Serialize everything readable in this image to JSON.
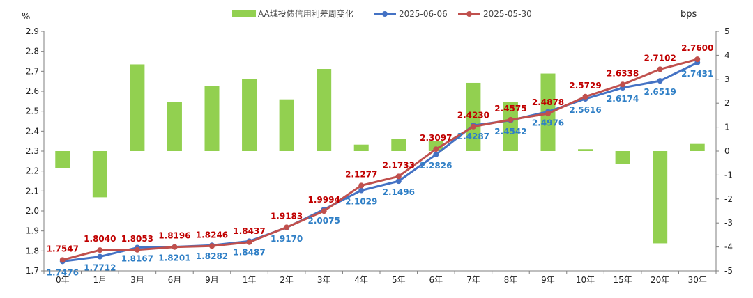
{
  "chart_data": {
    "type": "bar+line",
    "categories": [
      "0年",
      "1月",
      "3月",
      "6月",
      "9月",
      "1年",
      "2年",
      "3年",
      "4年",
      "5年",
      "6年",
      "7年",
      "8年",
      "9年",
      "10年",
      "15年",
      "20年",
      "30年"
    ],
    "left_axis": {
      "unit": "%",
      "ylim": [
        1.7,
        2.9
      ],
      "step": 0.1
    },
    "right_axis": {
      "unit": "bps",
      "ylim": [
        -5,
        5
      ],
      "step": 1
    },
    "bar_series": {
      "name": "AA城投债信用利差周变化",
      "axis": "right",
      "color": "#92D050",
      "values": [
        -0.71,
        -1.93,
        3.62,
        2.05,
        2.71,
        3.0,
        2.16,
        3.43,
        0.27,
        0.5,
        0.43,
        2.85,
        2.04,
        3.24,
        0.08,
        -0.54,
        -3.85,
        0.3
      ]
    },
    "line_series": [
      {
        "name": "2025-06-06",
        "axis": "left",
        "color": "#4472C4",
        "label_color": "#2F7FC6",
        "values": [
          1.7476,
          1.7712,
          1.8167,
          1.8201,
          1.8282,
          1.8487,
          1.917,
          2.0075,
          2.1029,
          2.1496,
          2.2826,
          2.4287,
          2.4542,
          2.4976,
          2.5616,
          2.6174,
          2.6519,
          2.7431
        ],
        "labels": [
          "1.7476",
          "1.7712",
          "1.8167",
          "1.8201",
          "1.8282",
          "1.8487",
          "1.9170",
          "2.0075",
          "2.1029",
          "2.1496",
          "2.2826",
          "2.4287",
          "2.4542",
          "2.4976",
          "2.5616",
          "2.6174",
          "2.6519",
          "2.7431"
        ]
      },
      {
        "name": "2025-05-30",
        "axis": "left",
        "color": "#C0504D",
        "label_color": "#C00000",
        "values": [
          1.7547,
          1.804,
          1.8053,
          1.8196,
          1.8246,
          1.8437,
          1.9183,
          1.9994,
          2.1277,
          2.1733,
          2.3097,
          2.423,
          2.4575,
          2.4878,
          2.5729,
          2.6338,
          2.7102,
          2.76
        ],
        "labels": [
          "1.7547",
          "1.8040",
          "1.8053",
          "1.8196",
          "1.8246",
          "1.8437",
          "1.9183",
          "1.9994",
          "2.1277",
          "2.1733",
          "2.3097",
          "2.4230",
          "2.4575",
          "2.4878",
          "2.5729",
          "2.6338",
          "2.7102",
          "2.7600"
        ]
      }
    ],
    "left_ticks": [
      "1.7",
      "1.8",
      "1.9",
      "2.0",
      "2.1",
      "2.2",
      "2.3",
      "2.4",
      "2.5",
      "2.6",
      "2.7",
      "2.8",
      "2.9"
    ],
    "right_ticks": [
      "-5",
      "-4",
      "-3",
      "-2",
      "-1",
      "0",
      "1",
      "2",
      "3",
      "4",
      "5"
    ],
    "legend": {
      "position": "top"
    }
  }
}
